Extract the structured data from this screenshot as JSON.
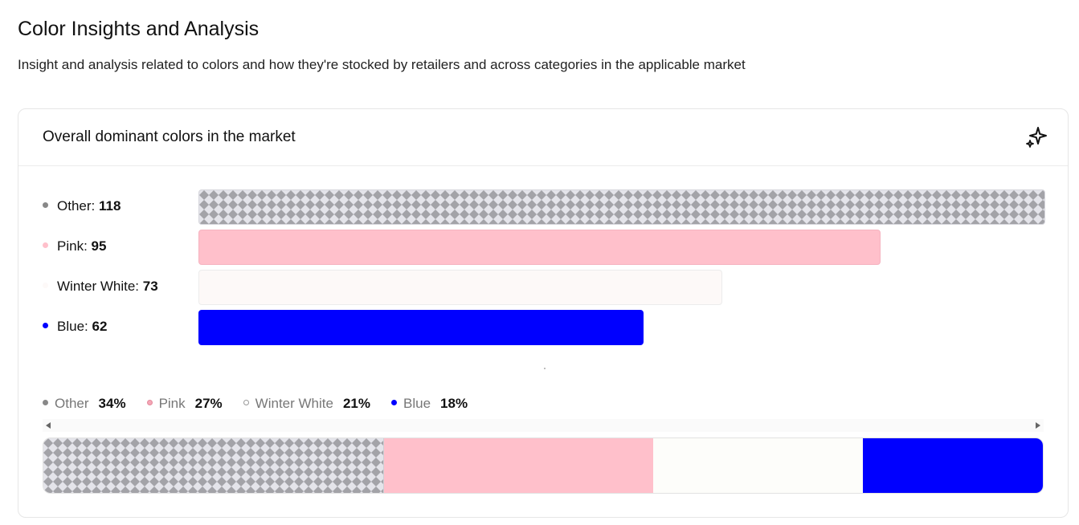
{
  "header": {
    "title": "Color Insights and Analysis",
    "subtitle": "Insight and analysis related to colors and how they're stocked by retailers and across categories in the applicable market"
  },
  "card": {
    "title": "Overall dominant colors in the market",
    "icon": "sparkle-icon"
  },
  "chart_data": [
    {
      "type": "bar",
      "orientation": "horizontal",
      "categories": [
        "Other",
        "Pink",
        "Winter White",
        "Blue"
      ],
      "values": [
        118,
        95,
        73,
        62
      ],
      "colors": [
        "pattern-gray",
        "#ffc0cb",
        "#fdf9f8",
        "#0000ff"
      ],
      "xlim": [
        0,
        118
      ]
    },
    {
      "type": "bar",
      "orientation": "stacked-horizontal",
      "categories": [
        "Other",
        "Pink",
        "Winter White",
        "Blue"
      ],
      "values": [
        34,
        27,
        21,
        18
      ],
      "unit": "%",
      "colors": [
        "pattern-gray",
        "#ffc0cb",
        "#fdfdfa",
        "#0000ff"
      ],
      "legend": [
        {
          "name": "Other",
          "pct": "34%",
          "dot": "#888888"
        },
        {
          "name": "Pink",
          "pct": "27%",
          "dot": "#f4a6b6"
        },
        {
          "name": "Winter White",
          "pct": "21%",
          "dot": "#ffffff"
        },
        {
          "name": "Blue",
          "pct": "18%",
          "dot": "#0000ff"
        }
      ],
      "legend_position": "top-left"
    }
  ]
}
